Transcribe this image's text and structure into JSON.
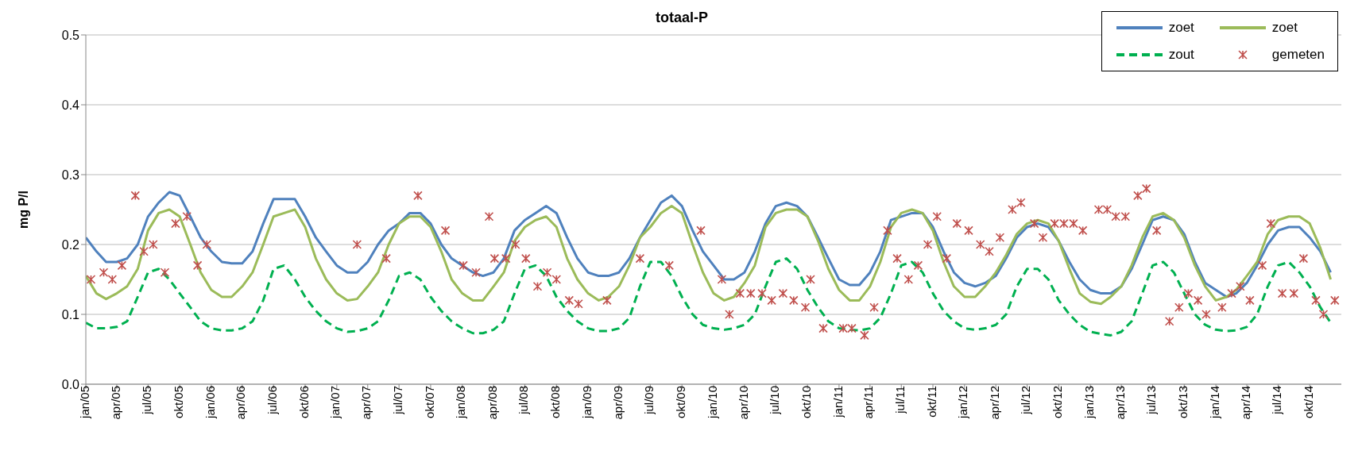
{
  "chart_data": {
    "type": "line",
    "title": "totaal-P",
    "ylabel": "mg P/l",
    "x": [
      "2005-01",
      "2005-02",
      "2005-03",
      "2005-04",
      "2005-05",
      "2005-06",
      "2005-07",
      "2005-08",
      "2005-09",
      "2005-10",
      "2005-11",
      "2005-12",
      "2006-01",
      "2006-02",
      "2006-03",
      "2006-04",
      "2006-05",
      "2006-06",
      "2006-07",
      "2006-08",
      "2006-09",
      "2006-10",
      "2006-11",
      "2006-12",
      "2007-01",
      "2007-02",
      "2007-03",
      "2007-04",
      "2007-05",
      "2007-06",
      "2007-07",
      "2007-08",
      "2007-09",
      "2007-10",
      "2007-11",
      "2007-12",
      "2008-01",
      "2008-02",
      "2008-03",
      "2008-04",
      "2008-05",
      "2008-06",
      "2008-07",
      "2008-08",
      "2008-09",
      "2008-10",
      "2008-11",
      "2008-12",
      "2009-01",
      "2009-02",
      "2009-03",
      "2009-04",
      "2009-05",
      "2009-06",
      "2009-07",
      "2009-08",
      "2009-09",
      "2009-10",
      "2009-11",
      "2009-12",
      "2010-01",
      "2010-02",
      "2010-03",
      "2010-04",
      "2010-05",
      "2010-06",
      "2010-07",
      "2010-08",
      "2010-09",
      "2010-10",
      "2010-11",
      "2010-12",
      "2011-01",
      "2011-02",
      "2011-03",
      "2011-04",
      "2011-05",
      "2011-06",
      "2011-07",
      "2011-08",
      "2011-09",
      "2011-10",
      "2011-11",
      "2011-12",
      "2012-01",
      "2012-02",
      "2012-03",
      "2012-04",
      "2012-05",
      "2012-06",
      "2012-07",
      "2012-08",
      "2012-09",
      "2012-10",
      "2012-11",
      "2012-12",
      "2013-01",
      "2013-02",
      "2013-03",
      "2013-04",
      "2013-05",
      "2013-06",
      "2013-07",
      "2013-08",
      "2013-09",
      "2013-10",
      "2013-11",
      "2013-12",
      "2014-01",
      "2014-02",
      "2014-03",
      "2014-04",
      "2014-05",
      "2014-06",
      "2014-07",
      "2014-08",
      "2014-09",
      "2014-10",
      "2014-11",
      "2014-12"
    ],
    "series": [
      {
        "name": "zoet",
        "color": "#4f81bd",
        "line_style": "solid",
        "values": [
          0.21,
          0.19,
          0.175,
          0.175,
          0.18,
          0.2,
          0.24,
          0.26,
          0.275,
          0.27,
          0.24,
          0.21,
          0.19,
          0.175,
          0.173,
          0.173,
          0.19,
          0.23,
          0.265,
          0.265,
          0.265,
          0.24,
          0.21,
          0.19,
          0.17,
          0.16,
          0.16,
          0.175,
          0.2,
          0.22,
          0.23,
          0.245,
          0.245,
          0.23,
          0.2,
          0.18,
          0.17,
          0.16,
          0.155,
          0.16,
          0.18,
          0.22,
          0.235,
          0.245,
          0.255,
          0.245,
          0.21,
          0.18,
          0.16,
          0.155,
          0.155,
          0.16,
          0.18,
          0.21,
          0.235,
          0.26,
          0.27,
          0.255,
          0.22,
          0.19,
          0.17,
          0.15,
          0.15,
          0.16,
          0.19,
          0.23,
          0.255,
          0.26,
          0.255,
          0.24,
          0.21,
          0.18,
          0.15,
          0.142,
          0.142,
          0.16,
          0.19,
          0.235,
          0.24,
          0.245,
          0.245,
          0.225,
          0.19,
          0.16,
          0.145,
          0.14,
          0.145,
          0.155,
          0.18,
          0.21,
          0.225,
          0.23,
          0.225,
          0.205,
          0.175,
          0.15,
          0.135,
          0.13,
          0.13,
          0.14,
          0.165,
          0.2,
          0.235,
          0.24,
          0.235,
          0.215,
          0.175,
          0.145,
          0.135,
          0.125,
          0.13,
          0.145,
          0.17,
          0.2,
          0.22,
          0.225,
          0.225,
          0.21,
          0.19,
          0.16
        ]
      },
      {
        "name": "zoet",
        "color": "#9bbb59",
        "line_style": "solid",
        "values": [
          0.155,
          0.13,
          0.122,
          0.13,
          0.14,
          0.165,
          0.22,
          0.245,
          0.25,
          0.24,
          0.2,
          0.16,
          0.135,
          0.125,
          0.125,
          0.14,
          0.16,
          0.2,
          0.24,
          0.245,
          0.25,
          0.225,
          0.18,
          0.15,
          0.13,
          0.12,
          0.122,
          0.14,
          0.16,
          0.2,
          0.23,
          0.24,
          0.24,
          0.225,
          0.19,
          0.15,
          0.13,
          0.12,
          0.12,
          0.14,
          0.16,
          0.205,
          0.225,
          0.235,
          0.24,
          0.225,
          0.18,
          0.15,
          0.13,
          0.12,
          0.125,
          0.14,
          0.17,
          0.21,
          0.225,
          0.245,
          0.255,
          0.245,
          0.2,
          0.16,
          0.13,
          0.12,
          0.125,
          0.145,
          0.17,
          0.225,
          0.245,
          0.25,
          0.25,
          0.24,
          0.205,
          0.165,
          0.135,
          0.12,
          0.12,
          0.14,
          0.175,
          0.225,
          0.245,
          0.25,
          0.245,
          0.22,
          0.175,
          0.14,
          0.125,
          0.125,
          0.14,
          0.16,
          0.185,
          0.215,
          0.23,
          0.235,
          0.23,
          0.205,
          0.165,
          0.13,
          0.118,
          0.115,
          0.125,
          0.14,
          0.17,
          0.21,
          0.24,
          0.245,
          0.235,
          0.21,
          0.17,
          0.14,
          0.12,
          0.125,
          0.135,
          0.155,
          0.175,
          0.215,
          0.235,
          0.24,
          0.24,
          0.23,
          0.195,
          0.15
        ]
      },
      {
        "name": "zout",
        "color": "#00b050",
        "line_style": "dashed",
        "values": [
          0.088,
          0.08,
          0.08,
          0.082,
          0.09,
          0.125,
          0.16,
          0.165,
          0.15,
          0.13,
          0.11,
          0.09,
          0.08,
          0.077,
          0.077,
          0.08,
          0.09,
          0.12,
          0.165,
          0.17,
          0.15,
          0.125,
          0.105,
          0.09,
          0.08,
          0.075,
          0.076,
          0.08,
          0.09,
          0.12,
          0.155,
          0.16,
          0.15,
          0.125,
          0.105,
          0.09,
          0.08,
          0.073,
          0.073,
          0.078,
          0.09,
          0.13,
          0.165,
          0.17,
          0.155,
          0.125,
          0.105,
          0.09,
          0.08,
          0.076,
          0.076,
          0.08,
          0.095,
          0.14,
          0.175,
          0.175,
          0.155,
          0.125,
          0.1,
          0.085,
          0.08,
          0.078,
          0.08,
          0.085,
          0.1,
          0.14,
          0.175,
          0.18,
          0.165,
          0.135,
          0.11,
          0.09,
          0.08,
          0.078,
          0.077,
          0.08,
          0.095,
          0.13,
          0.17,
          0.175,
          0.16,
          0.13,
          0.105,
          0.09,
          0.08,
          0.078,
          0.08,
          0.085,
          0.1,
          0.14,
          0.165,
          0.165,
          0.15,
          0.12,
          0.1,
          0.085,
          0.075,
          0.072,
          0.07,
          0.075,
          0.09,
          0.13,
          0.17,
          0.175,
          0.16,
          0.13,
          0.1,
          0.085,
          0.078,
          0.076,
          0.077,
          0.082,
          0.1,
          0.14,
          0.17,
          0.175,
          0.16,
          0.14,
          0.11,
          0.088
        ]
      },
      {
        "name": "gemeten",
        "type": "scatter",
        "color": "#c0504d",
        "marker": "cross",
        "x": [
          "2005-01-16",
          "2005-02-22",
          "2005-03-19",
          "2005-04-16",
          "2005-05-25",
          "2005-06-19",
          "2005-07-16",
          "2005-08-19",
          "2005-09-19",
          "2005-10-22",
          "2005-11-22",
          "2005-12-19",
          "2007-03-01",
          "2007-05-25",
          "2007-08-25",
          "2007-11-13",
          "2008-01-04",
          "2008-02-10",
          "2008-03-19",
          "2008-04-04",
          "2008-05-07",
          "2008-06-04",
          "2008-07-04",
          "2008-08-07",
          "2008-09-04",
          "2008-10-01",
          "2008-11-07",
          "2008-12-04",
          "2009-02-25",
          "2009-06-01",
          "2009-08-25",
          "2009-11-25",
          "2010-01-25",
          "2010-02-16",
          "2010-03-19",
          "2010-04-19",
          "2010-05-22",
          "2010-06-19",
          "2010-07-22",
          "2010-08-22",
          "2010-09-25",
          "2010-10-10",
          "2010-11-16",
          "2011-01-13",
          "2011-02-07",
          "2011-03-16",
          "2011-04-13",
          "2011-05-22",
          "2011-06-19",
          "2011-07-22",
          "2011-08-19",
          "2011-09-16",
          "2011-10-13",
          "2011-11-10",
          "2011-12-10",
          "2012-01-13",
          "2012-02-16",
          "2012-03-13",
          "2012-04-13",
          "2012-05-19",
          "2012-06-13",
          "2012-07-22",
          "2012-08-16",
          "2012-09-19",
          "2012-10-16",
          "2012-11-13",
          "2012-12-10",
          "2013-01-25",
          "2013-02-19",
          "2013-03-16",
          "2013-04-13",
          "2013-05-19",
          "2013-06-13",
          "2013-07-13",
          "2013-08-19",
          "2013-09-16",
          "2013-10-13",
          "2013-11-10",
          "2013-12-04",
          "2014-01-19",
          "2014-02-16",
          "2014-03-13",
          "2014-04-10",
          "2014-05-16",
          "2014-06-10",
          "2014-07-13",
          "2014-08-16",
          "2014-09-13",
          "2014-10-19",
          "2014-11-10",
          "2014-12-13"
        ],
        "values": [
          0.15,
          0.16,
          0.15,
          0.17,
          0.27,
          0.19,
          0.2,
          0.16,
          0.23,
          0.24,
          0.17,
          0.2,
          0.2,
          0.18,
          0.27,
          0.22,
          0.17,
          0.16,
          0.24,
          0.18,
          0.18,
          0.2,
          0.18,
          0.14,
          0.16,
          0.15,
          0.12,
          0.115,
          0.12,
          0.18,
          0.17,
          0.22,
          0.15,
          0.1,
          0.13,
          0.13,
          0.13,
          0.12,
          0.13,
          0.12,
          0.11,
          0.15,
          0.08,
          0.08,
          0.08,
          0.07,
          0.11,
          0.22,
          0.18,
          0.15,
          0.17,
          0.2,
          0.24,
          0.18,
          0.23,
          0.22,
          0.2,
          0.19,
          0.21,
          0.25,
          0.26,
          0.23,
          0.21,
          0.23,
          0.23,
          0.23,
          0.22,
          0.25,
          0.25,
          0.24,
          0.24,
          0.27,
          0.28,
          0.22,
          0.09,
          0.11,
          0.13,
          0.12,
          0.1,
          0.11,
          0.13,
          0.14,
          0.12,
          0.17,
          0.23,
          0.13,
          0.13,
          0.18,
          0.12,
          0.1,
          0.12
        ]
      }
    ],
    "xlim": [
      "2005-01",
      "2015-01"
    ],
    "xticks": [
      {
        "value": "2005-01",
        "label": "jan/05"
      },
      {
        "value": "2005-04",
        "label": "apr/05"
      },
      {
        "value": "2005-07",
        "label": "jul/05"
      },
      {
        "value": "2005-10",
        "label": "okt/05"
      },
      {
        "value": "2006-01",
        "label": "jan/06"
      },
      {
        "value": "2006-04",
        "label": "apr/06"
      },
      {
        "value": "2006-07",
        "label": "jul/06"
      },
      {
        "value": "2006-10",
        "label": "okt/06"
      },
      {
        "value": "2007-01",
        "label": "jan/07"
      },
      {
        "value": "2007-04",
        "label": "apr/07"
      },
      {
        "value": "2007-07",
        "label": "jul/07"
      },
      {
        "value": "2007-10",
        "label": "okt/07"
      },
      {
        "value": "2008-01",
        "label": "jan/08"
      },
      {
        "value": "2008-04",
        "label": "apr/08"
      },
      {
        "value": "2008-07",
        "label": "jul/08"
      },
      {
        "value": "2008-10",
        "label": "okt/08"
      },
      {
        "value": "2009-01",
        "label": "jan/09"
      },
      {
        "value": "2009-04",
        "label": "apr/09"
      },
      {
        "value": "2009-07",
        "label": "jul/09"
      },
      {
        "value": "2009-10",
        "label": "okt/09"
      },
      {
        "value": "2010-01",
        "label": "jan/10"
      },
      {
        "value": "2010-04",
        "label": "apr/10"
      },
      {
        "value": "2010-07",
        "label": "jul/10"
      },
      {
        "value": "2010-10",
        "label": "okt/10"
      },
      {
        "value": "2011-01",
        "label": "jan/11"
      },
      {
        "value": "2011-04",
        "label": "apr/11"
      },
      {
        "value": "2011-07",
        "label": "jul/11"
      },
      {
        "value": "2011-10",
        "label": "okt/11"
      },
      {
        "value": "2012-01",
        "label": "jan/12"
      },
      {
        "value": "2012-04",
        "label": "apr/12"
      },
      {
        "value": "2012-07",
        "label": "jul/12"
      },
      {
        "value": "2012-10",
        "label": "okt/12"
      },
      {
        "value": "2013-01",
        "label": "jan/13"
      },
      {
        "value": "2013-04",
        "label": "apr/13"
      },
      {
        "value": "2013-07",
        "label": "jul/13"
      },
      {
        "value": "2013-10",
        "label": "okt/13"
      },
      {
        "value": "2014-01",
        "label": "jan/14"
      },
      {
        "value": "2014-04",
        "label": "apr/14"
      },
      {
        "value": "2014-07",
        "label": "jul/14"
      },
      {
        "value": "2014-10",
        "label": "okt/14"
      }
    ],
    "ylim": [
      0,
      0.5
    ],
    "yticks": [
      {
        "value": 0,
        "label": "0.0"
      },
      {
        "value": 0.1,
        "label": "0.1"
      },
      {
        "value": 0.2,
        "label": "0.2"
      },
      {
        "value": 0.3,
        "label": "0.3"
      },
      {
        "value": 0.4,
        "label": "0.4"
      },
      {
        "value": 0.5,
        "label": "0.5"
      }
    ],
    "grid": "y",
    "legend": "top right"
  }
}
